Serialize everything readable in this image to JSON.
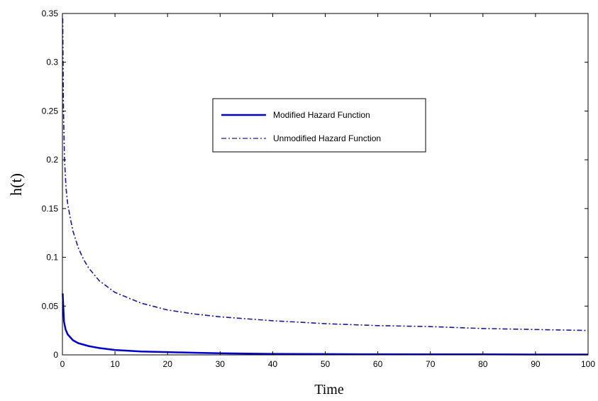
{
  "chart_data": {
    "type": "line",
    "title": "",
    "xlabel": "Time",
    "ylabel": "h(t)",
    "xlim": [
      0,
      100
    ],
    "ylim": [
      0,
      0.35
    ],
    "x_ticks": [
      "0",
      "10",
      "20",
      "30",
      "40",
      "50",
      "60",
      "70",
      "80",
      "90",
      "100"
    ],
    "y_ticks": [
      "0",
      "0.05",
      "0.1",
      "0.15",
      "0.2",
      "0.25",
      "0.3",
      "0.35"
    ],
    "grid": false,
    "legend_position": "upper-center",
    "series": [
      {
        "name": "Modified Hazard Function",
        "style": "solid",
        "color": "#0000cc",
        "x": [
          0.05,
          0.3,
          0.6,
          1,
          2,
          3,
          5,
          7,
          10,
          15,
          20,
          25,
          30,
          40,
          50,
          60,
          70,
          80,
          90,
          100
        ],
        "y": [
          0.063,
          0.034,
          0.026,
          0.021,
          0.015,
          0.012,
          0.009,
          0.007,
          0.005,
          0.0035,
          0.0028,
          0.0022,
          0.0016,
          0.001,
          0.0008,
          0.0006,
          0.0005,
          0.0005,
          0.0004,
          0.0004
        ]
      },
      {
        "name": "Unmodified Hazard Function",
        "style": "dashdot",
        "color": "#1a1a99",
        "x": [
          0.05,
          0.2,
          0.4,
          0.7,
          1,
          1.5,
          2,
          3,
          4,
          5,
          7,
          10,
          15,
          20,
          25,
          30,
          40,
          50,
          60,
          70,
          80,
          90,
          100
        ],
        "y": [
          0.345,
          0.25,
          0.2,
          0.17,
          0.155,
          0.14,
          0.127,
          0.11,
          0.098,
          0.089,
          0.076,
          0.064,
          0.053,
          0.046,
          0.042,
          0.039,
          0.035,
          0.032,
          0.03,
          0.029,
          0.027,
          0.026,
          0.025
        ]
      }
    ]
  },
  "colors": {
    "axis": "#000000",
    "background": "#ffffff"
  }
}
